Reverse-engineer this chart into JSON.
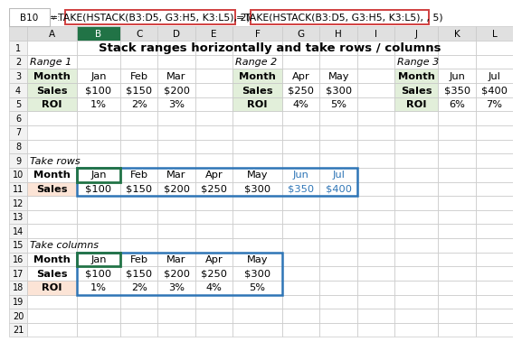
{
  "title": "Stack ranges horizontally and take rows / columns",
  "formula_left": "=TAKE(HSTACK(B3:D5, G3:H5, K3:L5), 2)",
  "formula_right": "=TAKE(HSTACK(B3:D5, G3:H5, K3:L5), , 5)",
  "cell_ref": "B10",
  "col_letters": [
    "A",
    "B",
    "C",
    "D",
    "E",
    "F",
    "G",
    "H",
    "I",
    "J",
    "K",
    "L"
  ],
  "num_rows": 21,
  "grid_color": "#c8c8c8",
  "header_bg": "#e0e0e0",
  "col_b_header_bg": "#217346",
  "col_b_header_fg": "#ffffff",
  "green_cell_bg": "#e2efda",
  "blue_border_color": "#2e75b6",
  "formula_box_border": "#d04040",
  "row_header_bg": "#f2f2f2",
  "salmon_bg": "#fce4d6",
  "range1_label": "Range 1",
  "range2_label": "Range 2",
  "range3_label": "Range 3",
  "take_rows_label": "Take rows",
  "take_cols_label": "Take columns",
  "t1_data": [
    [
      "Month",
      "Jan",
      "Feb",
      "Mar"
    ],
    [
      "Sales",
      "$100",
      "$150",
      "$200"
    ],
    [
      "ROI",
      "1%",
      "2%",
      "3%"
    ]
  ],
  "t2_data": [
    [
      "Month",
      "Apr",
      "May"
    ],
    [
      "Sales",
      "$250",
      "$300"
    ],
    [
      "ROI",
      "4%",
      "5%"
    ]
  ],
  "t3_data": [
    [
      "Month",
      "Jun",
      "Jul"
    ],
    [
      "Sales",
      "$350",
      "$400"
    ],
    [
      "ROI",
      "6%",
      "7%"
    ]
  ],
  "tr_data": [
    [
      "Jan",
      "Feb",
      "Mar",
      "Apr",
      "May",
      "Jun",
      "Jul"
    ],
    [
      "$100",
      "$150",
      "$200",
      "$250",
      "$300",
      "$350",
      "$400"
    ]
  ],
  "tc_data": [
    [
      "Jan",
      "Feb",
      "Mar",
      "Apr",
      "May"
    ],
    [
      "$100",
      "$150",
      "$200",
      "$250",
      "$300"
    ],
    [
      "1%",
      "2%",
      "3%",
      "4%",
      "5%"
    ]
  ]
}
